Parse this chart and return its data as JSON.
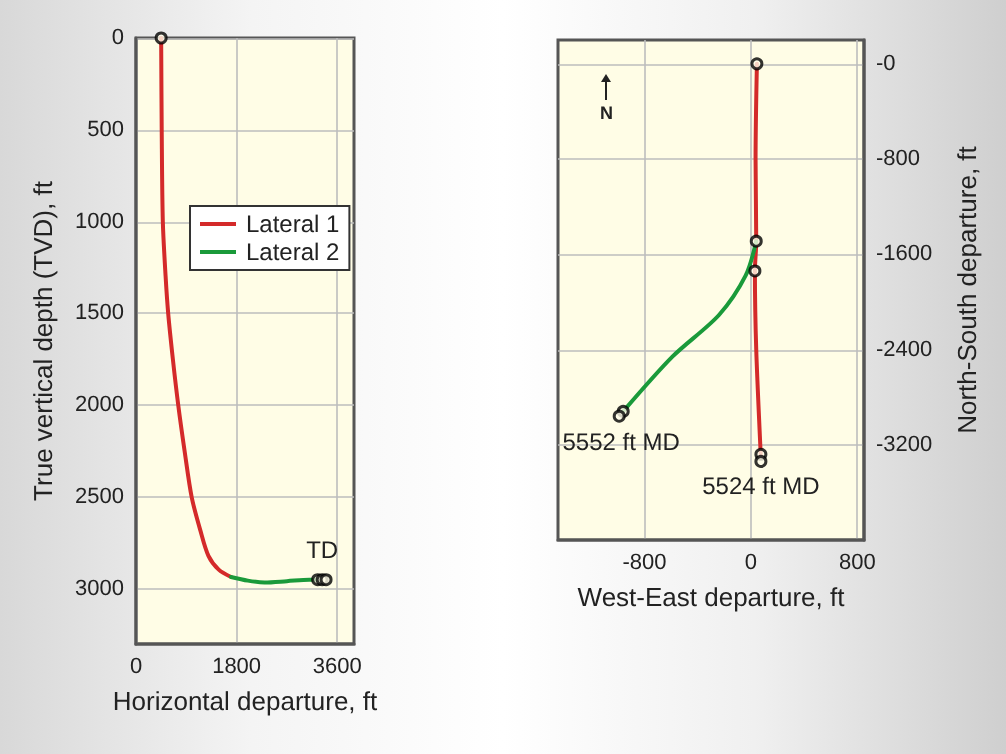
{
  "chart_data": [
    {
      "type": "line",
      "xlabel": "Horizontal departure, ft",
      "ylabel": "True vertical depth (TVD), ft",
      "xlim": [
        0,
        3900
      ],
      "xticks": [
        0,
        1800,
        3600
      ],
      "ylim": [
        3300,
        0
      ],
      "yticks": [
        0,
        500,
        1000,
        1500,
        2000,
        2500,
        3000
      ],
      "grid": true,
      "legend": "right",
      "line_style": "solid",
      "marker": "none",
      "series": [
        {
          "name": "Lateral 1",
          "color": "#d42a2a",
          "x": [
            450,
            460,
            480,
            530,
            576,
            660,
            756,
            870,
            996,
            1150,
            1296,
            1480,
            1700
          ],
          "values": [
            0,
            500,
            1000,
            1300,
            1500,
            1750,
            2000,
            2250,
            2500,
            2680,
            2820,
            2895,
            2935
          ]
        },
        {
          "name": "Lateral 2",
          "color": "#1a9a3a",
          "x": [
            1700,
            2000,
            2300,
            2700,
            3100,
            3300
          ],
          "values": [
            2935,
            2955,
            2965,
            2958,
            2950,
            2950
          ]
        },
        {
          "type": "scatter",
          "marker": "circle",
          "color": "#000000",
          "x": [
            450,
            3250,
            3330,
            3400
          ],
          "values": [
            0,
            2950,
            2950,
            2950
          ]
        }
      ],
      "annotations": [
        {
          "text": "TD",
          "x": 3330,
          "y": 2950
        }
      ]
    },
    {
      "type": "line",
      "xlabel": "West-East departure, ft",
      "ylabel": "North-South departure, ft",
      "xlim": [
        -1450,
        850
      ],
      "xticks": [
        -800,
        0,
        800
      ],
      "ylim": [
        -4000,
        200
      ],
      "yticks": [
        {
          "value": 0,
          "label": "-0"
        },
        -800,
        -1600,
        -2400,
        -3200
      ],
      "grid": true,
      "legend": false,
      "line_style": "solid",
      "marker": "none",
      "series": [
        {
          "color": "#d42a2a",
          "x": [
            45,
            35,
            40,
            30,
            40,
            75
          ],
          "values": [
            0,
            -800,
            -1490,
            -1740,
            -2400,
            -3310
          ]
        },
        {
          "color": "#1a9a3a",
          "x": [
            40,
            -40,
            -240,
            -590,
            -960
          ],
          "values": [
            -1490,
            -1780,
            -2110,
            -2460,
            -2920
          ]
        },
        {
          "type": "scatter",
          "marker": "circle",
          "color": "#000000",
          "x": [
            45,
            40,
            30,
            -960,
            -990,
            75,
            75
          ],
          "values": [
            0,
            -1490,
            -1740,
            -2920,
            -2960,
            -3280,
            -3340
          ]
        }
      ],
      "annotations": [
        "N",
        {
          "text": "5552 ft MD",
          "x": -975,
          "y": -2940
        },
        {
          "text": "5524 ft MD",
          "x": 75,
          "y": -3310
        }
      ]
    }
  ]
}
